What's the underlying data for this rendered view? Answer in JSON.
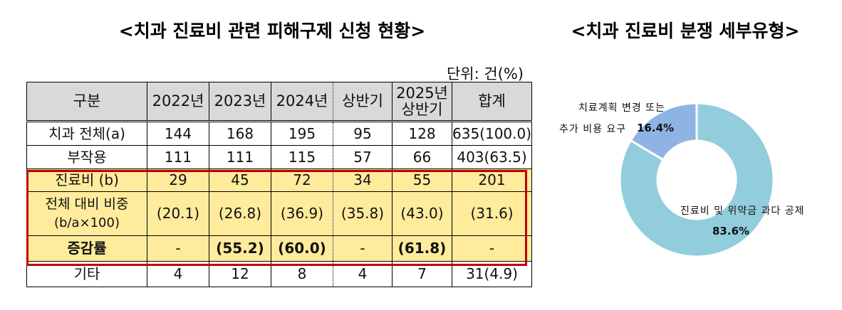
{
  "titles": {
    "left": "<치과 진료비 관련 피해구제 신청 현황>",
    "right": "<치과 진료비 분쟁 세부유형>"
  },
  "table": {
    "unit": "단위: 건(%)",
    "headers": {
      "category": "구분",
      "y2022": "2022년",
      "y2023": "2023년",
      "y2024": "2024년",
      "h2024": "상반기",
      "h2025_line1": "2025년",
      "h2025_line2": "상반기",
      "total": "합계"
    },
    "rows": [
      {
        "label": "치과 전체(a)",
        "values": [
          "144",
          "168",
          "195",
          "95",
          "128",
          "635(100.0)"
        ]
      },
      {
        "label": "부작용",
        "values": [
          "111",
          "111",
          "115",
          "57",
          "66",
          "403(63.5)"
        ]
      },
      {
        "label": "진료비 (b)",
        "values": [
          "29",
          "45",
          "72",
          "34",
          "55",
          "201"
        ]
      },
      {
        "label_line1": "전체 대비 비중",
        "label_line2": "(b/a×100)",
        "values": [
          "(20.1)",
          "(26.8)",
          "(36.9)",
          "(35.8)",
          "(43.0)",
          "(31.6)"
        ]
      },
      {
        "label": "증감률",
        "values": [
          "-",
          "(55.2)",
          "(60.0)",
          "-",
          "(61.8)",
          "-"
        ]
      },
      {
        "label": "기타",
        "values": [
          "4",
          "12",
          "8",
          "4",
          "7",
          "31(4.9)"
        ]
      }
    ],
    "highlight_fill": "#FFEB9C",
    "highlight_border": "#C00000",
    "header_fill": "#D9D9D9"
  },
  "chart_data": {
    "type": "pie",
    "title": "<치과 진료비 분쟁 세부유형>",
    "donut": true,
    "categories": [
      "진료비 및 위약금 과다 공제",
      "치료계획 변경 또는 추가 비용 요구"
    ],
    "values": [
      83.6,
      16.4
    ],
    "colors": [
      "#92CDDC",
      "#8EB4E3"
    ],
    "labels": [
      {
        "text": "진료비 및 위약금 과다 공제",
        "pct": "83.6%"
      },
      {
        "text_line1": "치료계획 변경 또는",
        "text_line2": "추가 비용 요구",
        "pct": "16.4%"
      }
    ],
    "unit": "%"
  }
}
